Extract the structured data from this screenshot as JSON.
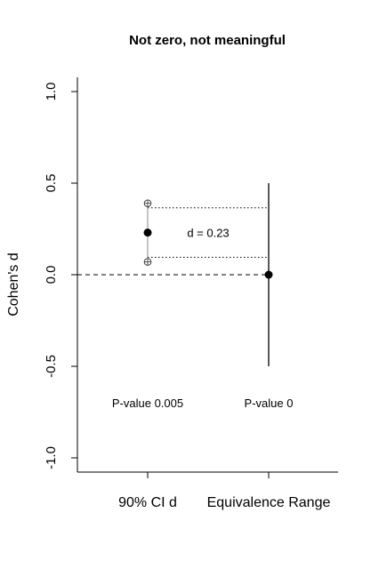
{
  "chart_data": {
    "type": "dotplot",
    "title": "Not zero, not meaningful",
    "ylabel": "Cohen's d",
    "xlabel": "",
    "ylim": [
      -1.05,
      1.1
    ],
    "yticks": [
      {
        "value": -1.0,
        "label": "-1.0"
      },
      {
        "value": -0.5,
        "label": "-0.5"
      },
      {
        "value": 0.0,
        "label": "0.0"
      },
      {
        "value": 0.5,
        "label": "0.5"
      },
      {
        "value": 1.0,
        "label": "1.0"
      }
    ],
    "categories": [
      "90% CI d",
      "Equivalence Range"
    ],
    "ci": {
      "category": "90% CI d",
      "lower": 0.07,
      "estimate": 0.23,
      "upper": 0.39
    },
    "equivalence": {
      "category": "Equivalence Range",
      "lower": -0.5,
      "center": 0.0,
      "upper": 0.5
    },
    "reference_lines": [
      {
        "value": 0.0,
        "style": "dashed"
      },
      {
        "value": 0.365,
        "style": "dotted"
      },
      {
        "value": 0.095,
        "style": "dotted"
      }
    ],
    "annotations": [
      {
        "text": "d =  0.23",
        "category": "between",
        "y": 0.23
      },
      {
        "text": "P-value 0.005",
        "category": "90% CI d",
        "y": -0.7
      },
      {
        "text": "P-value 0",
        "category": "Equivalence Range",
        "y": -0.7
      }
    ]
  }
}
